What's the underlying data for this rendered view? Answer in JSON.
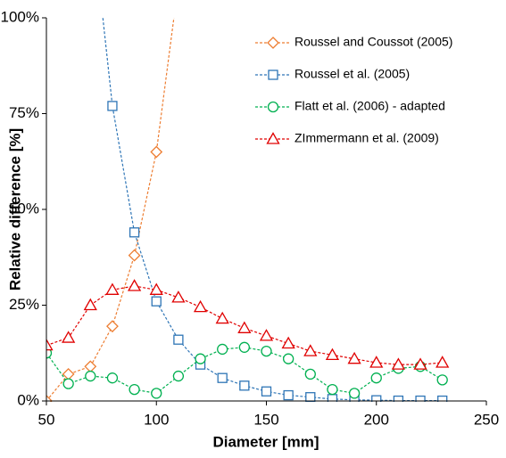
{
  "chart_data": {
    "type": "line",
    "x_label": "Diameter [mm]",
    "y_label": "Relative difference [%]",
    "x": [
      50,
      60,
      70,
      80,
      90,
      100,
      110,
      120,
      130,
      140,
      150,
      160,
      170,
      180,
      190,
      200,
      210,
      220,
      230
    ],
    "xlim": [
      50,
      250
    ],
    "xticks": [
      50,
      100,
      150,
      200,
      250
    ],
    "ylim": [
      0,
      100
    ],
    "yticks": [
      {
        "value": 0,
        "label": "0%"
      },
      {
        "value": 25,
        "label": "25%"
      },
      {
        "value": 50,
        "label": "50%"
      },
      {
        "value": 75,
        "label": "75%"
      },
      {
        "value": 100,
        "label": "100%"
      }
    ],
    "grid": false,
    "legend": "top-right",
    "series": [
      {
        "name": "Roussel and Coussot (2005)",
        "color": "#ed7d31",
        "marker": "diamond",
        "values": [
          0,
          7,
          9,
          19.5,
          38,
          65,
          109,
          null,
          null,
          null,
          null,
          null,
          null,
          null,
          null,
          null,
          null,
          null,
          null
        ]
      },
      {
        "name": "Roussel et al. (2005)",
        "color": "#2e75b6",
        "marker": "square",
        "values": [
          null,
          null,
          130,
          77,
          44,
          26,
          16,
          9.5,
          6,
          4,
          2.5,
          1.5,
          1,
          0.5,
          0.3,
          0.2,
          0.1,
          0.1,
          0.1
        ]
      },
      {
        "name": "Flatt et al. (2006) - adapted",
        "color": "#00b050",
        "marker": "circle",
        "values": [
          12.5,
          4.5,
          6.5,
          6,
          3,
          2,
          6.5,
          11,
          13.5,
          14,
          13,
          11,
          7,
          3,
          2,
          6,
          8.5,
          9,
          5.5
        ]
      },
      {
        "name": "ZImmermann et al. (2009)",
        "color": "#e00000",
        "marker": "triangle",
        "values": [
          14.5,
          16.5,
          25,
          29,
          30,
          29,
          27,
          24.5,
          21.5,
          19,
          17,
          15,
          13,
          12,
          11,
          10,
          9.5,
          9.5,
          10
        ]
      }
    ]
  }
}
